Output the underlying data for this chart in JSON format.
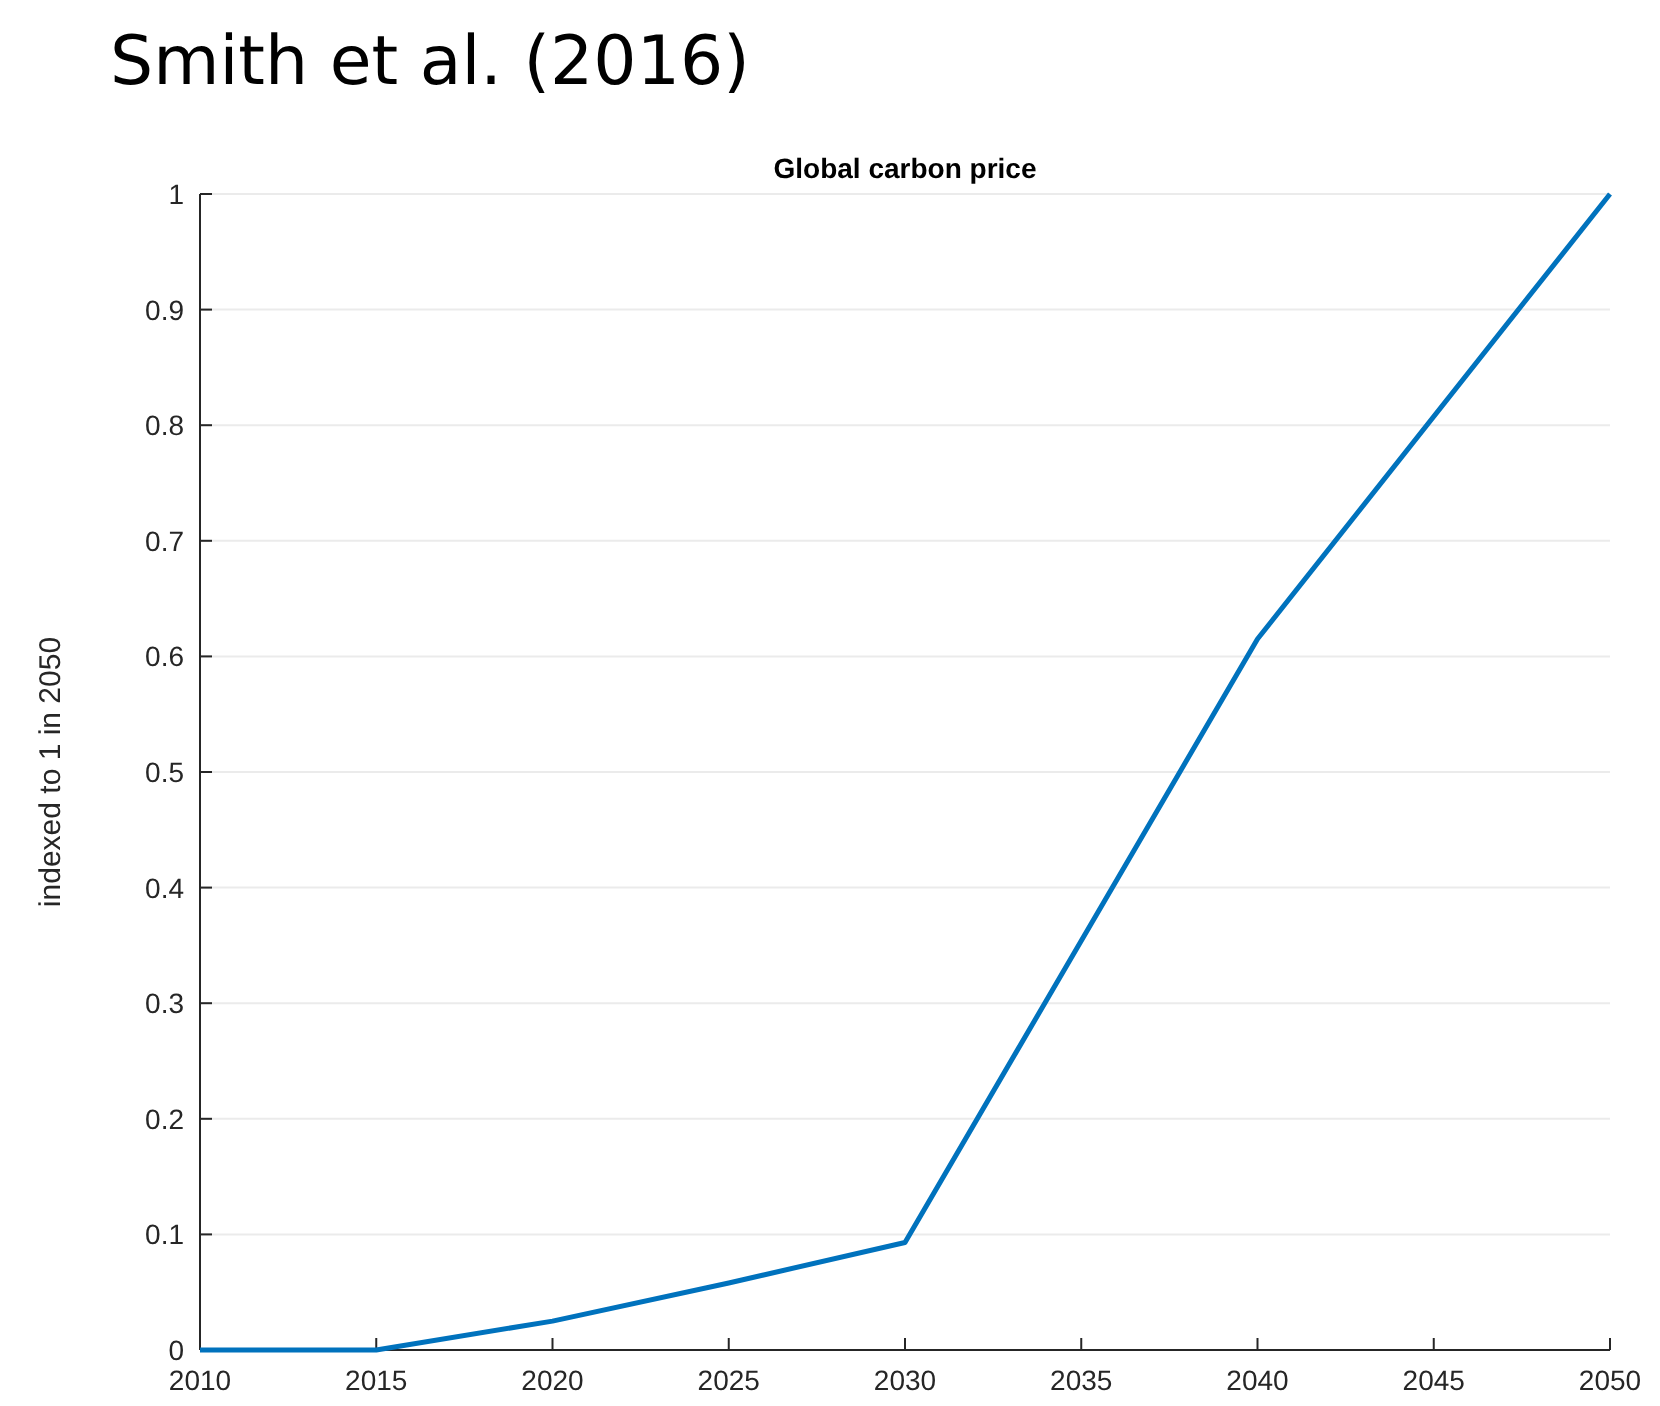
{
  "chart_data": {
    "type": "line",
    "title": "Smith et al. (2016)",
    "subtitle": "Global carbon price",
    "ylabel": "indexed to 1 in 2050",
    "x": [
      2010,
      2015,
      2020,
      2025,
      2030,
      2040,
      2050
    ],
    "series": [
      {
        "color": "#0072bd",
        "values": [
          0,
          0,
          0.025,
          0.058,
          0.093,
          0.615,
          1
        ]
      }
    ],
    "xlim": [
      2010,
      2050
    ],
    "xticks": [
      2010,
      2015,
      2020,
      2025,
      2030,
      2035,
      2040,
      2045,
      2050
    ],
    "ylim": [
      0,
      1
    ],
    "yticks": [
      0,
      0.1,
      0.2,
      0.3,
      0.4,
      0.5,
      0.6,
      0.7,
      0.8,
      0.9,
      1
    ],
    "grid": "y",
    "marker": "none",
    "line_style": "solid"
  }
}
